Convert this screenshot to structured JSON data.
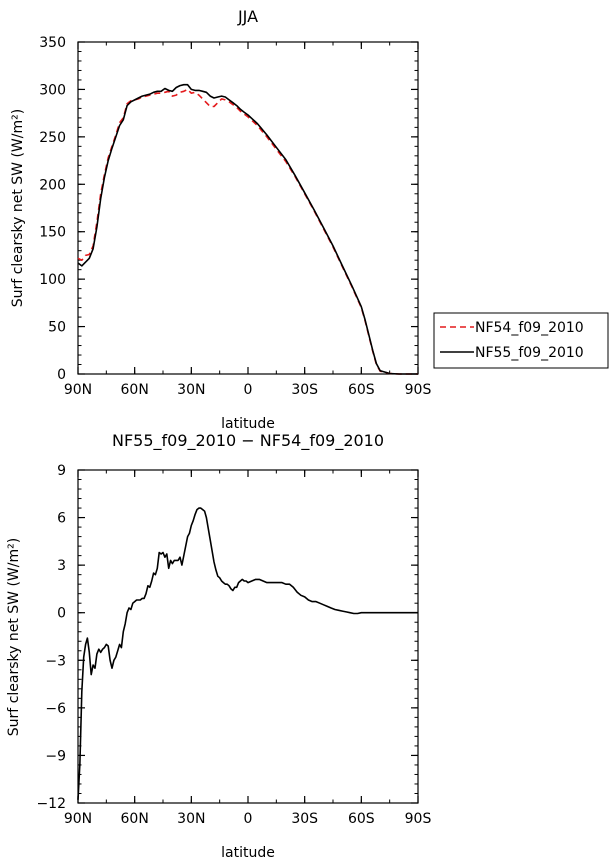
{
  "chart_data": [
    {
      "type": "line",
      "title": "JJA",
      "xlabel": "latitude",
      "ylabel": "Surf clearsky net SW (W/m²)",
      "xlim": [
        90,
        -90
      ],
      "ylim": [
        0,
        350
      ],
      "x_ticks": [
        90,
        60,
        30,
        0,
        -30,
        -60,
        -90
      ],
      "x_tick_labels": [
        "90N",
        "60N",
        "30N",
        "0",
        "30S",
        "60S",
        "90S"
      ],
      "y_ticks": [
        0,
        50,
        100,
        150,
        200,
        250,
        300,
        350
      ],
      "y_tick_labels": [
        "0",
        "50",
        "100",
        "150",
        "200",
        "250",
        "300",
        "350"
      ],
      "legend_position": "right",
      "series": [
        {
          "name": "NF54_f09_2010",
          "color": "#e41a1c",
          "style": "dashed",
          "x": [
            90,
            88,
            86,
            84,
            82,
            80,
            78,
            76,
            74,
            72,
            70,
            68,
            66,
            64,
            62,
            60,
            58,
            56,
            54,
            52,
            50,
            48,
            46,
            44,
            42,
            40,
            38,
            36,
            34,
            32,
            30,
            28,
            26,
            24,
            22,
            20,
            18,
            16,
            14,
            12,
            10,
            8,
            6,
            4,
            2,
            0,
            -5,
            -10,
            -15,
            -20,
            -25,
            -30,
            -35,
            -40,
            -45,
            -50,
            -55,
            -60,
            -62,
            -64,
            -66,
            -68,
            -70,
            -75,
            -80,
            -85,
            -90
          ],
          "y": [
            122,
            120,
            125,
            126,
            135,
            160,
            190,
            210,
            228,
            240,
            252,
            265,
            270,
            285,
            288,
            289,
            290,
            292,
            293,
            294,
            295,
            296,
            296,
            297,
            298,
            293,
            294,
            297,
            298,
            300,
            296,
            297,
            294,
            290,
            286,
            282,
            282,
            286,
            290,
            289,
            287,
            284,
            281,
            277,
            274,
            271,
            262,
            250,
            237,
            224,
            208,
            190,
            172,
            153,
            134,
            113,
            92,
            70,
            56,
            40,
            24,
            10,
            3,
            0.5,
            0,
            0,
            0
          ]
        },
        {
          "name": "NF55_f09_2010",
          "color": "#000000",
          "style": "solid",
          "x": [
            90,
            88,
            86,
            84,
            82,
            80,
            78,
            76,
            74,
            72,
            70,
            68,
            66,
            64,
            62,
            60,
            58,
            56,
            54,
            52,
            50,
            48,
            46,
            44,
            42,
            40,
            38,
            36,
            34,
            32,
            30,
            28,
            26,
            24,
            22,
            20,
            18,
            16,
            14,
            12,
            10,
            8,
            6,
            4,
            2,
            0,
            -5,
            -10,
            -15,
            -20,
            -25,
            -30,
            -35,
            -40,
            -45,
            -50,
            -55,
            -60,
            -62,
            -64,
            -66,
            -68,
            -70,
            -75,
            -80,
            -85,
            -90
          ],
          "y": [
            117,
            114,
            118,
            122,
            132,
            155,
            185,
            207,
            225,
            238,
            250,
            262,
            268,
            283,
            287,
            289,
            291,
            293,
            294,
            295,
            297,
            298,
            298,
            301,
            299,
            298,
            302,
            304,
            305,
            305,
            300,
            299,
            299,
            298,
            297,
            293,
            291,
            292,
            293,
            292,
            289,
            286,
            283,
            279,
            276,
            273,
            264,
            252,
            239,
            226,
            209,
            191,
            173,
            154,
            135,
            114,
            93,
            71,
            57,
            41,
            25,
            11,
            3.5,
            0.5,
            0,
            0,
            0
          ]
        }
      ]
    },
    {
      "type": "line",
      "title": "NF55_f09_2010 − NF54_f09_2010",
      "xlabel": "latitude",
      "ylabel": "Surf clearsky net SW (W/m²)",
      "xlim": [
        90,
        -90
      ],
      "ylim": [
        -12,
        9
      ],
      "x_ticks": [
        90,
        60,
        30,
        0,
        -30,
        -60,
        -90
      ],
      "x_tick_labels": [
        "90N",
        "60N",
        "30N",
        "0",
        "30S",
        "60S",
        "90S"
      ],
      "y_ticks": [
        -12,
        -9,
        -6,
        -3,
        0,
        3,
        6,
        9
      ],
      "y_tick_labels": [
        "−12",
        "−9",
        "−6",
        "−3",
        "0",
        "3",
        "6",
        "9"
      ],
      "series": [
        {
          "color": "#000000",
          "style": "solid",
          "x": [
            90,
            89,
            88,
            87,
            86,
            85,
            84,
            83,
            82,
            81,
            80,
            79,
            78,
            77,
            76,
            75,
            74,
            73,
            72,
            71,
            70,
            69,
            68,
            67,
            66,
            65,
            64,
            63,
            62,
            61,
            60,
            59,
            58,
            57,
            56,
            55,
            54,
            53,
            52,
            51,
            50,
            49,
            48,
            47,
            46,
            45,
            44,
            43,
            42,
            41,
            40,
            39,
            38,
            37,
            36,
            35,
            34,
            33,
            32,
            31,
            30,
            29,
            28,
            27,
            26,
            25,
            24,
            23,
            22,
            21,
            20,
            19,
            18,
            17,
            16,
            15,
            14,
            13,
            12,
            11,
            10,
            9,
            8,
            7,
            6,
            5,
            4,
            3,
            2,
            1,
            0,
            -2,
            -4,
            -6,
            -8,
            -10,
            -12,
            -14,
            -16,
            -18,
            -20,
            -22,
            -24,
            -26,
            -28,
            -30,
            -32,
            -34,
            -36,
            -38,
            -40,
            -42,
            -44,
            -46,
            -48,
            -50,
            -52,
            -54,
            -56,
            -58,
            -60,
            -62,
            -64,
            -66,
            -68,
            -70,
            -75,
            -80,
            -85,
            -90
          ],
          "y": [
            -11.8,
            -9.5,
            -5,
            -2.8,
            -2,
            -1.6,
            -2.5,
            -3.9,
            -3.3,
            -3.5,
            -2.6,
            -2.3,
            -2.5,
            -2.3,
            -2.2,
            -2.0,
            -2.1,
            -3.0,
            -3.5,
            -3.0,
            -2.8,
            -2.4,
            -2.0,
            -2.2,
            -1.2,
            -0.7,
            0.0,
            0.3,
            0.2,
            0.6,
            0.7,
            0.8,
            0.8,
            0.8,
            0.9,
            0.9,
            1.2,
            1.7,
            1.6,
            2.0,
            2.5,
            2.4,
            2.8,
            3.8,
            3.7,
            3.8,
            3.5,
            3.7,
            2.8,
            3.3,
            3.1,
            3.3,
            3.3,
            3.3,
            3.5,
            3.0,
            3.6,
            4.2,
            4.8,
            5.0,
            5.5,
            5.8,
            6.2,
            6.5,
            6.6,
            6.6,
            6.5,
            6.4,
            6.0,
            5.3,
            4.6,
            3.9,
            3.2,
            2.7,
            2.3,
            2.2,
            2.0,
            1.9,
            1.8,
            1.8,
            1.7,
            1.5,
            1.4,
            1.6,
            1.6,
            1.9,
            2.0,
            2.1,
            2.0,
            2.0,
            1.9,
            2.0,
            2.1,
            2.1,
            2.0,
            1.9,
            1.9,
            1.9,
            1.9,
            1.9,
            1.8,
            1.8,
            1.6,
            1.3,
            1.1,
            1.0,
            0.8,
            0.7,
            0.7,
            0.6,
            0.5,
            0.4,
            0.3,
            0.2,
            0.15,
            0.1,
            0.05,
            0.0,
            -0.05,
            -0.05,
            0.0,
            0.0,
            0.0,
            0.0,
            0.0,
            0.0,
            0.0,
            0.0,
            0.0,
            0.0
          ]
        }
      ]
    }
  ]
}
